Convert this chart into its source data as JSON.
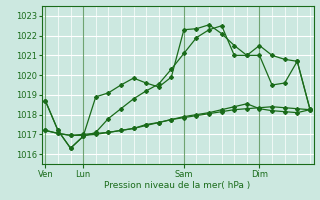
{
  "bg_color": "#cce8e0",
  "grid_color": "#b0d8d0",
  "line_color": "#1a6b1a",
  "title": "Pression niveau de la mer( hPa )",
  "xlabel_ticks": [
    "Ven",
    "Lun",
    "Sam",
    "Dim"
  ],
  "xlabel_tick_positions": [
    0,
    3,
    11,
    17
  ],
  "ylim": [
    1015.5,
    1023.5
  ],
  "yticks": [
    1016,
    1017,
    1018,
    1019,
    1020,
    1021,
    1022,
    1023
  ],
  "xlim": [
    -0.3,
    21.3
  ],
  "series1_x": [
    0,
    1,
    2,
    3,
    4,
    5,
    6,
    7,
    8,
    9,
    10,
    11,
    12,
    13,
    14,
    15,
    16,
    17,
    18,
    19,
    20,
    21
  ],
  "series1_y": [
    1018.7,
    1017.2,
    1016.3,
    1016.9,
    1018.9,
    1019.1,
    1019.5,
    1019.85,
    1019.6,
    1019.4,
    1019.9,
    1022.3,
    1022.35,
    1022.55,
    1022.1,
    1021.5,
    1021.0,
    1021.0,
    1019.5,
    1019.6,
    1020.7,
    1018.3
  ],
  "series2_x": [
    0,
    1,
    2,
    3,
    4,
    5,
    6,
    7,
    8,
    9,
    10,
    11,
    12,
    13,
    14,
    15,
    16,
    17,
    18,
    19,
    20,
    21
  ],
  "series2_y": [
    1018.7,
    1017.2,
    1016.3,
    1016.9,
    1017.1,
    1017.8,
    1018.3,
    1018.8,
    1019.2,
    1019.55,
    1020.3,
    1021.1,
    1021.9,
    1022.3,
    1022.5,
    1021.0,
    1021.0,
    1021.5,
    1021.0,
    1020.8,
    1020.7,
    1018.3
  ],
  "series3_x": [
    0,
    1,
    2,
    3,
    4,
    5,
    6,
    7,
    8,
    9,
    10,
    11,
    12,
    13,
    14,
    15,
    16,
    17,
    18,
    19,
    20,
    21
  ],
  "series3_y": [
    1017.2,
    1017.05,
    1016.95,
    1016.95,
    1017.0,
    1017.1,
    1017.2,
    1017.3,
    1017.5,
    1017.6,
    1017.75,
    1017.85,
    1017.95,
    1018.05,
    1018.15,
    1018.25,
    1018.3,
    1018.35,
    1018.4,
    1018.35,
    1018.3,
    1018.25
  ],
  "series4_x": [
    0,
    1,
    2,
    3,
    4,
    5,
    6,
    7,
    8,
    9,
    10,
    11,
    12,
    13,
    14,
    15,
    16,
    17,
    18,
    19,
    20,
    21
  ],
  "series4_y": [
    1017.2,
    1017.05,
    1016.95,
    1017.0,
    1017.05,
    1017.1,
    1017.2,
    1017.3,
    1017.45,
    1017.6,
    1017.75,
    1017.9,
    1018.0,
    1018.1,
    1018.25,
    1018.4,
    1018.55,
    1018.3,
    1018.2,
    1018.15,
    1018.1,
    1018.25
  ],
  "vline_positions": [
    0,
    3,
    11,
    17
  ],
  "markersize": 2.0,
  "linewidth": 0.9
}
